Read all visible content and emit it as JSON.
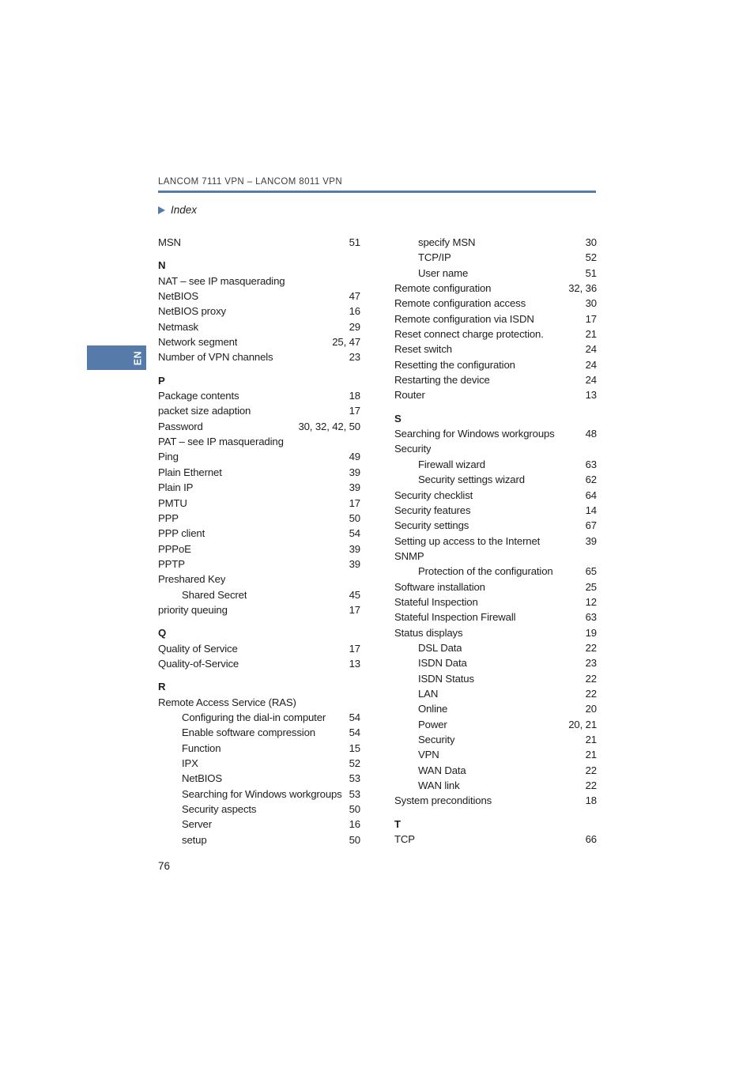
{
  "page": {
    "header_title": "LANCOM 7111 VPN – LANCOM 8011 VPN",
    "section_title": "Index",
    "language_tab": "EN",
    "page_number": "76",
    "accent_color": "#567aa9"
  },
  "index": {
    "left_column": [
      {
        "type": "entry",
        "text": "MSN",
        "pages": "51"
      },
      {
        "type": "letter",
        "text": "N",
        "pages": ""
      },
      {
        "type": "entry",
        "text": "NAT – see IP masquerading",
        "pages": ""
      },
      {
        "type": "entry",
        "text": "NetBIOS",
        "pages": "47"
      },
      {
        "type": "entry",
        "text": "NetBIOS proxy",
        "pages": "16"
      },
      {
        "type": "entry",
        "text": "Netmask",
        "pages": "29"
      },
      {
        "type": "entry",
        "text": "Network segment",
        "pages": "25, 47"
      },
      {
        "type": "entry",
        "text": "Number of VPN channels",
        "pages": "23"
      },
      {
        "type": "letter",
        "text": "P",
        "pages": ""
      },
      {
        "type": "entry",
        "text": "Package contents",
        "pages": "18"
      },
      {
        "type": "entry",
        "text": "packet size adaption",
        "pages": "17"
      },
      {
        "type": "entry",
        "text": "Password",
        "pages": "30, 32, 42, 50"
      },
      {
        "type": "entry",
        "text": "PAT – see IP masquerading",
        "pages": ""
      },
      {
        "type": "entry",
        "text": "Ping",
        "pages": "49"
      },
      {
        "type": "entry",
        "text": "Plain Ethernet",
        "pages": "39"
      },
      {
        "type": "entry",
        "text": "Plain IP",
        "pages": "39"
      },
      {
        "type": "entry",
        "text": "PMTU",
        "pages": "17"
      },
      {
        "type": "entry",
        "text": "PPP",
        "pages": "50"
      },
      {
        "type": "entry",
        "text": "PPP client",
        "pages": "54"
      },
      {
        "type": "entry",
        "text": "PPPoE",
        "pages": "39"
      },
      {
        "type": "entry",
        "text": "PPTP",
        "pages": "39"
      },
      {
        "type": "entry",
        "text": "Preshared Key",
        "pages": ""
      },
      {
        "type": "sub",
        "text": "Shared Secret",
        "pages": "45"
      },
      {
        "type": "entry",
        "text": "priority queuing",
        "pages": "17"
      },
      {
        "type": "letter",
        "text": "Q",
        "pages": ""
      },
      {
        "type": "entry",
        "text": "Quality of Service",
        "pages": "17"
      },
      {
        "type": "entry",
        "text": "Quality-of-Service",
        "pages": "13"
      },
      {
        "type": "letter",
        "text": "R",
        "pages": ""
      },
      {
        "type": "entry",
        "text": "Remote Access Service (RAS)",
        "pages": ""
      },
      {
        "type": "sub",
        "text": "Configuring the dial-in computer",
        "pages": "54"
      },
      {
        "type": "sub",
        "text": "Enable software compression",
        "pages": "54"
      },
      {
        "type": "sub",
        "text": "Function",
        "pages": "15"
      },
      {
        "type": "sub",
        "text": "IPX",
        "pages": "52"
      },
      {
        "type": "sub",
        "text": "NetBIOS",
        "pages": "53"
      },
      {
        "type": "sub",
        "text": "Searching for Windows workgroups",
        "pages": "53"
      },
      {
        "type": "sub",
        "text": "Security aspects",
        "pages": "50"
      },
      {
        "type": "sub",
        "text": "Server",
        "pages": "16"
      },
      {
        "type": "sub",
        "text": "setup",
        "pages": "50"
      }
    ],
    "right_column": [
      {
        "type": "sub",
        "text": "specify MSN",
        "pages": "30"
      },
      {
        "type": "sub",
        "text": "TCP/IP",
        "pages": "52"
      },
      {
        "type": "sub",
        "text": "User name",
        "pages": "51"
      },
      {
        "type": "entry",
        "text": "Remote configuration",
        "pages": "32, 36"
      },
      {
        "type": "entry",
        "text": "Remote configuration access",
        "pages": "30"
      },
      {
        "type": "entry",
        "text": "Remote configuration via ISDN",
        "pages": "17"
      },
      {
        "type": "entry",
        "text": "Reset connect charge protection.",
        "pages": "21"
      },
      {
        "type": "entry",
        "text": "Reset switch",
        "pages": "24"
      },
      {
        "type": "entry",
        "text": "Resetting the configuration",
        "pages": "24"
      },
      {
        "type": "entry",
        "text": "Restarting the device",
        "pages": "24"
      },
      {
        "type": "entry",
        "text": "Router",
        "pages": "13"
      },
      {
        "type": "letter",
        "text": "S",
        "pages": ""
      },
      {
        "type": "entry",
        "text": "Searching for Windows workgroups",
        "pages": "48"
      },
      {
        "type": "entry",
        "text": "Security",
        "pages": ""
      },
      {
        "type": "sub",
        "text": "Firewall wizard",
        "pages": "63"
      },
      {
        "type": "sub",
        "text": "Security settings wizard",
        "pages": "62"
      },
      {
        "type": "entry",
        "text": "Security checklist",
        "pages": "64"
      },
      {
        "type": "entry",
        "text": "Security features",
        "pages": "14"
      },
      {
        "type": "entry",
        "text": "Security settings",
        "pages": "67"
      },
      {
        "type": "entry",
        "text": "Setting up access to the Internet",
        "pages": "39"
      },
      {
        "type": "entry",
        "text": "SNMP",
        "pages": ""
      },
      {
        "type": "sub",
        "text": "Protection of the configuration",
        "pages": "65"
      },
      {
        "type": "entry",
        "text": "Software installation",
        "pages": "25"
      },
      {
        "type": "entry",
        "text": "Stateful Inspection",
        "pages": "12"
      },
      {
        "type": "entry",
        "text": "Stateful Inspection Firewall",
        "pages": "63"
      },
      {
        "type": "entry",
        "text": "Status displays",
        "pages": "19"
      },
      {
        "type": "sub",
        "text": "DSL Data",
        "pages": "22"
      },
      {
        "type": "sub",
        "text": "ISDN Data",
        "pages": "23"
      },
      {
        "type": "sub",
        "text": "ISDN Status",
        "pages": "22"
      },
      {
        "type": "sub",
        "text": "LAN",
        "pages": "22"
      },
      {
        "type": "sub",
        "text": "Online",
        "pages": "20"
      },
      {
        "type": "sub",
        "text": "Power",
        "pages": "20, 21"
      },
      {
        "type": "sub",
        "text": "Security",
        "pages": "21"
      },
      {
        "type": "sub",
        "text": "VPN",
        "pages": "21"
      },
      {
        "type": "sub",
        "text": "WAN Data",
        "pages": "22"
      },
      {
        "type": "sub",
        "text": "WAN link",
        "pages": "22"
      },
      {
        "type": "entry",
        "text": "System preconditions",
        "pages": "18"
      },
      {
        "type": "letter",
        "text": "T",
        "pages": ""
      },
      {
        "type": "entry",
        "text": "TCP",
        "pages": "66"
      }
    ]
  }
}
